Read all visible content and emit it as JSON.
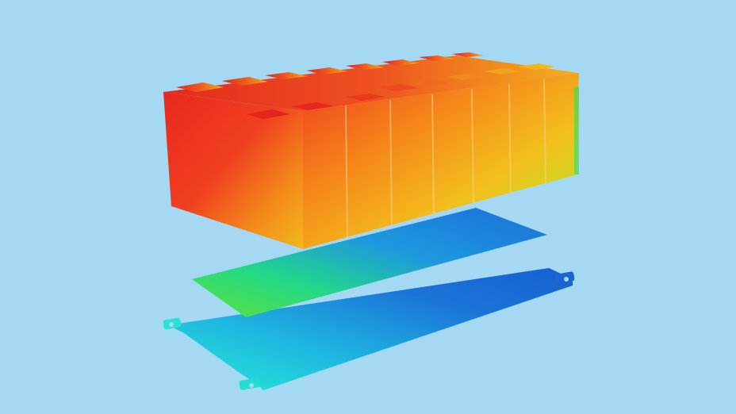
{
  "scene": {
    "description_kind": "thermal-simulation-render",
    "background_color": "#a4d8f3",
    "battery_module": {
      "cell_count": 10,
      "color_scale": [
        "#e8281e",
        "#f26a1a",
        "#f4b21c",
        "#e6d21c",
        "#2ee05a"
      ]
    },
    "thermal_pad": {
      "color_scale": [
        "#53e03a",
        "#24d88a",
        "#1d8ee0",
        "#1b6ed8"
      ]
    },
    "cooling_plate": {
      "color_scale": [
        "#24ecd4",
        "#1fb6e0",
        "#1b74d8",
        "#1560d0"
      ]
    }
  }
}
